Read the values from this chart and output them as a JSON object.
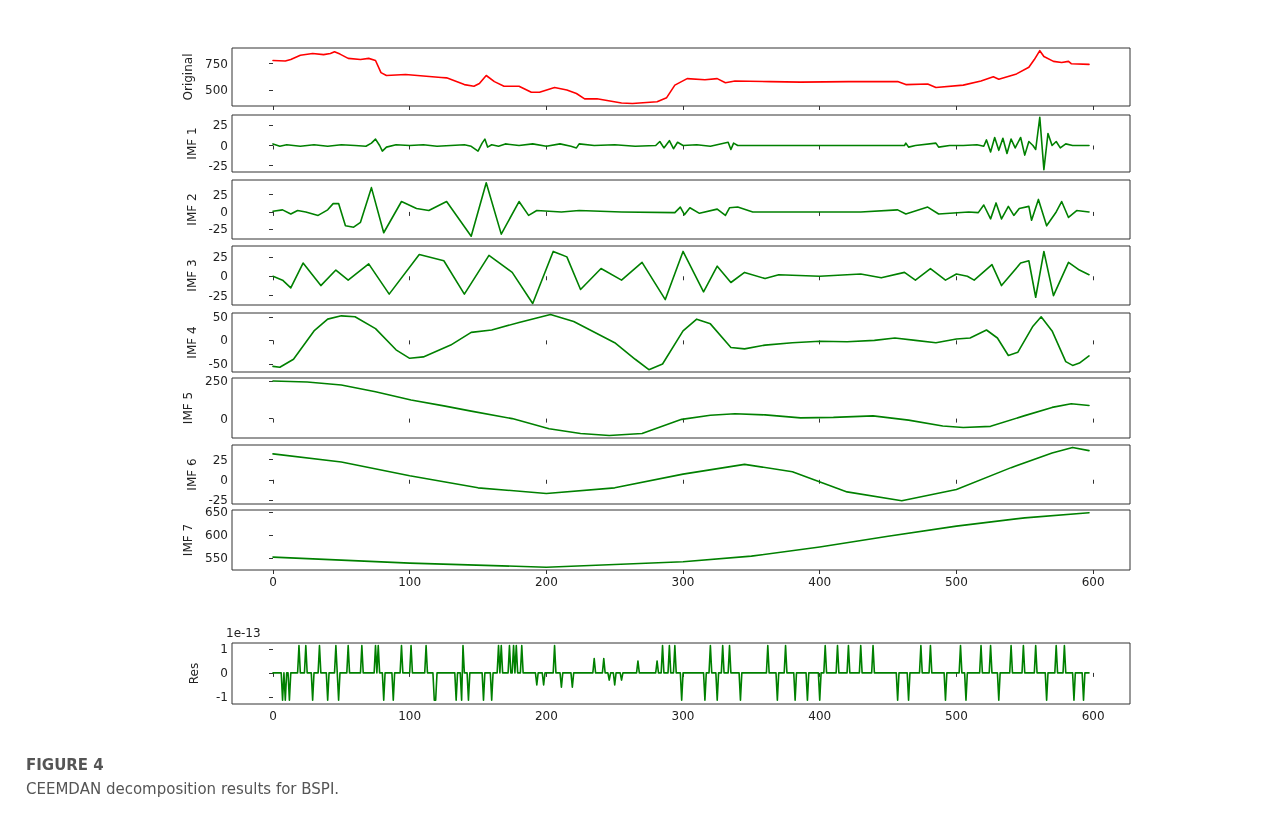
{
  "chart_data": [
    {
      "type": "line",
      "ylabel": "Original",
      "color": "#ff0000",
      "xlim": [
        -30,
        627
      ],
      "xticks": [
        0,
        100,
        200,
        300,
        400,
        500,
        600
      ],
      "ylim": [
        355,
        897
      ],
      "yticks": [
        500,
        750
      ],
      "tick_labels": "y",
      "x": [
        0,
        9,
        13,
        20,
        29,
        37,
        42,
        45,
        49,
        55,
        64,
        70,
        75,
        79,
        83,
        97,
        123,
        127,
        140,
        147,
        151,
        156,
        162,
        169,
        180,
        189,
        195,
        206,
        215,
        222,
        228,
        237,
        255,
        263,
        281,
        288,
        294,
        303,
        316,
        325,
        331,
        338,
        364,
        386,
        421,
        457,
        463,
        479,
        485,
        505,
        518,
        527,
        531,
        544,
        553,
        557,
        561,
        564,
        571,
        577,
        582,
        584,
        597
      ],
      "values": [
        780,
        775,
        790,
        830,
        845,
        835,
        845,
        862,
        840,
        800,
        790,
        800,
        780,
        667,
        640,
        650,
        622,
        618,
        555,
        540,
        565,
        640,
        583,
        540,
        540,
        483,
        483,
        528,
        505,
        472,
        422,
        422,
        383,
        378,
        394,
        433,
        550,
        611,
        600,
        611,
        572,
        589,
        583,
        578,
        583,
        583,
        555,
        561,
        528,
        550,
        589,
        628,
        605,
        655,
        717,
        789,
        872,
        817,
        772,
        761,
        772,
        750,
        744
      ]
    },
    {
      "type": "line",
      "ylabel": "IMF 1",
      "color": "#008000",
      "xlim": [
        -30,
        627
      ],
      "xticks": [
        0,
        100,
        200,
        300,
        400,
        500,
        600
      ],
      "ylim": [
        -33,
        38
      ],
      "yticks": [
        -25,
        0,
        25
      ],
      "tick_labels": "y",
      "x": [
        0,
        5,
        10,
        20,
        30,
        40,
        50,
        60,
        68,
        72,
        75,
        78,
        80,
        83,
        90,
        100,
        110,
        120,
        130,
        140,
        145,
        150,
        153,
        155,
        157,
        160,
        165,
        170,
        180,
        190,
        200,
        210,
        218,
        222,
        224,
        235,
        250,
        265,
        280,
        283,
        286,
        290,
        293,
        296,
        300,
        310,
        320,
        333,
        335,
        337,
        340,
        360,
        400,
        450,
        462,
        463,
        465,
        470,
        485,
        487,
        495,
        505,
        515,
        520,
        522,
        525,
        528,
        531,
        534,
        537,
        540,
        543,
        547,
        550,
        553,
        556,
        558,
        561,
        564,
        567,
        570,
        573,
        576,
        580,
        585,
        597
      ],
      "values": [
        2,
        -1,
        1,
        -1,
        1,
        -1,
        1,
        0,
        -1,
        3,
        8,
        0,
        -7,
        -2,
        1,
        0,
        1,
        -1,
        0,
        1,
        -1,
        -7,
        3,
        8,
        -2,
        1,
        -1,
        2,
        0,
        2,
        -1,
        2,
        -1,
        -3,
        2,
        0,
        1,
        -1,
        0,
        5,
        -3,
        6,
        -4,
        4,
        0,
        1,
        -1,
        4,
        -5,
        3,
        0,
        0,
        0,
        0,
        0,
        3,
        -2,
        0,
        3,
        -2,
        0,
        0,
        1,
        -1,
        7,
        -8,
        10,
        -6,
        9,
        -10,
        8,
        -3,
        10,
        -12,
        5,
        0,
        -5,
        35,
        -30,
        15,
        0,
        5,
        -3,
        2,
        0,
        0
      ]
    },
    {
      "type": "line",
      "ylabel": "IMF 2",
      "color": "#008000",
      "xlim": [
        -30,
        627
      ],
      "xticks": [
        0,
        100,
        200,
        300,
        400,
        500,
        600
      ],
      "ylim": [
        -39,
        46
      ],
      "yticks": [
        -25,
        0,
        25
      ],
      "tick_labels": "y",
      "x": [
        0,
        7,
        13,
        18,
        24,
        33,
        40,
        44,
        48,
        53,
        59,
        64,
        72,
        81,
        94,
        105,
        114,
        127,
        145,
        156,
        167,
        180,
        187,
        193,
        211,
        224,
        255,
        294,
        298,
        301,
        305,
        312,
        325,
        331,
        334,
        340,
        351,
        386,
        430,
        457,
        463,
        479,
        487,
        509,
        516,
        520,
        525,
        529,
        533,
        538,
        542,
        546,
        553,
        555,
        560,
        566,
        573,
        577,
        582,
        588,
        597
      ],
      "values": [
        1,
        3,
        -3,
        2,
        0,
        -5,
        3,
        12,
        12,
        -20,
        -22,
        -15,
        35,
        -30,
        15,
        5,
        2,
        15,
        -35,
        42,
        -32,
        15,
        -5,
        2,
        0,
        2,
        0,
        -1,
        7,
        -4,
        6,
        -2,
        4,
        -5,
        6,
        7,
        0,
        0,
        0,
        3,
        -3,
        7,
        -3,
        0,
        -1,
        10,
        -10,
        13,
        -10,
        8,
        -5,
        5,
        8,
        -12,
        18,
        -20,
        0,
        15,
        -8,
        2,
        0
      ]
    },
    {
      "type": "line",
      "ylabel": "IMF 3",
      "color": "#008000",
      "xlim": [
        -30,
        627
      ],
      "xticks": [
        0,
        100,
        200,
        300,
        400,
        500,
        600
      ],
      "ylim": [
        -37,
        39
      ],
      "yticks": [
        -25,
        0,
        25
      ],
      "tick_labels": "y",
      "x": [
        0,
        7,
        13,
        22,
        35,
        46,
        55,
        70,
        85,
        107,
        125,
        140,
        158,
        175,
        190,
        205,
        215,
        225,
        240,
        255,
        270,
        287,
        300,
        315,
        325,
        335,
        345,
        360,
        370,
        400,
        430,
        445,
        462,
        470,
        481,
        492,
        500,
        508,
        513,
        526,
        533,
        547,
        553,
        558,
        564,
        571,
        582,
        590,
        597
      ],
      "values": [
        0,
        -5,
        -15,
        17,
        -12,
        8,
        -5,
        16,
        -23,
        28,
        20,
        -23,
        27,
        5,
        -35,
        32,
        25,
        -17,
        10,
        -5,
        18,
        -30,
        32,
        -20,
        13,
        -8,
        5,
        -3,
        2,
        0,
        3,
        -2,
        5,
        -5,
        10,
        -5,
        3,
        0,
        -5,
        15,
        -12,
        17,
        20,
        -27,
        32,
        -25,
        18,
        8,
        2
      ]
    },
    {
      "type": "line",
      "ylabel": "IMF 4",
      "color": "#008000",
      "xlim": [
        -30,
        627
      ],
      "xticks": [
        0,
        100,
        200,
        300,
        400,
        500,
        600
      ],
      "ylim": [
        -67,
        58
      ],
      "yticks": [
        -50,
        0,
        50
      ],
      "tick_labels": "y",
      "x": [
        0,
        5,
        15,
        30,
        40,
        50,
        60,
        75,
        90,
        100,
        110,
        130,
        145,
        160,
        180,
        203,
        220,
        250,
        265,
        275,
        285,
        300,
        310,
        320,
        335,
        345,
        360,
        380,
        400,
        420,
        440,
        455,
        470,
        485,
        500,
        510,
        522,
        530,
        538,
        545,
        556,
        562,
        570,
        580,
        585,
        590,
        597
      ],
      "values": [
        -55,
        -57,
        -40,
        20,
        45,
        52,
        50,
        25,
        -20,
        -38,
        -35,
        -10,
        17,
        22,
        38,
        55,
        40,
        -5,
        -40,
        -62,
        -50,
        20,
        45,
        35,
        -15,
        -18,
        -10,
        -5,
        -2,
        -3,
        0,
        5,
        0,
        -5,
        3,
        5,
        22,
        5,
        -32,
        -25,
        30,
        50,
        20,
        -45,
        -53,
        -48,
        -33
      ]
    },
    {
      "type": "line",
      "ylabel": "IMF 5",
      "color": "#008000",
      "xlim": [
        -30,
        627
      ],
      "xticks": [
        0,
        100,
        200,
        300,
        400,
        500,
        600
      ],
      "ylim": [
        -130,
        272
      ],
      "yticks": [
        0,
        250
      ],
      "tick_labels": "y",
      "x": [
        0,
        25,
        50,
        75,
        101,
        125,
        145,
        175,
        202,
        225,
        246,
        270,
        299,
        320,
        338,
        360,
        386,
        410,
        439,
        465,
        490,
        505,
        525,
        550,
        570,
        584,
        597
      ],
      "values": [
        252,
        245,
        225,
        180,
        125,
        85,
        50,
        0,
        -68,
        -100,
        -113,
        -100,
        -5,
        22,
        32,
        25,
        5,
        8,
        18,
        -10,
        -50,
        -60,
        -52,
        20,
        75,
        100,
        88
      ]
    },
    {
      "type": "line",
      "ylabel": "IMF 6",
      "color": "#008000",
      "xlim": [
        -30,
        627
      ],
      "xticks": [
        0,
        100,
        200,
        300,
        400,
        500,
        600
      ],
      "ylim": [
        -30,
        43
      ],
      "yticks": [
        -25,
        0,
        25
      ],
      "tick_labels": "y",
      "x": [
        0,
        50,
        100,
        150,
        200,
        250,
        300,
        345,
        380,
        420,
        460,
        500,
        540,
        570,
        585,
        597
      ],
      "values": [
        32,
        22,
        5,
        -10,
        -17,
        -10,
        7,
        19,
        10,
        -15,
        -26,
        -12,
        15,
        33,
        40,
        36
      ]
    },
    {
      "type": "line",
      "ylabel": "IMF 7",
      "color": "#008000",
      "xlim": [
        -30,
        627
      ],
      "xticks": [
        0,
        100,
        200,
        300,
        400,
        500,
        600
      ],
      "ylim": [
        525,
        655
      ],
      "yticks": [
        550,
        600,
        650
      ],
      "x": [
        0,
        100,
        200,
        300,
        350,
        400,
        450,
        500,
        550,
        597
      ],
      "values": [
        553,
        540,
        531,
        543,
        555,
        575,
        598,
        620,
        638,
        649
      ]
    },
    {
      "type": "line",
      "ylabel": "Res",
      "color": "#008000",
      "xlim": [
        -30,
        627
      ],
      "xticks": [
        0,
        100,
        200,
        300,
        400,
        500,
        600
      ],
      "ylim": [
        -1.3,
        1.25
      ],
      "yticks": [
        -1,
        0,
        1
      ],
      "annotations": [
        "1e-13",
        "FIGURE 4",
        "CEEMDAN decomposition results for BSPI."
      ],
      "x": [
        0,
        6,
        7,
        8,
        9,
        10,
        11,
        12,
        13,
        18,
        19,
        20,
        23,
        24,
        25,
        28,
        29,
        30,
        33,
        34,
        35,
        39,
        40,
        41,
        45,
        46,
        47,
        48,
        49,
        54,
        55,
        56,
        64,
        65,
        66,
        74,
        75,
        76,
        77,
        78,
        80,
        81,
        82,
        87,
        88,
        89,
        93,
        94,
        95,
        100,
        101,
        102,
        111,
        112,
        113,
        117,
        118,
        119,
        120,
        133,
        134,
        135,
        137,
        138,
        139,
        140,
        142,
        143,
        144,
        153,
        154,
        155,
        159,
        160,
        161,
        164,
        165,
        166,
        167,
        168,
        172,
        173,
        174,
        175,
        176,
        177,
        178,
        179,
        181,
        182,
        183,
        192,
        193,
        194,
        197,
        198,
        199,
        205,
        206,
        207,
        210,
        211,
        212,
        218,
        219,
        220,
        234,
        235,
        236,
        241,
        242,
        243,
        245,
        246,
        247,
        249,
        250,
        251,
        254,
        255,
        256,
        266,
        267,
        268,
        280,
        281,
        282,
        284,
        285,
        286,
        289,
        290,
        291,
        293,
        294,
        295,
        298,
        299,
        300,
        315,
        316,
        317,
        319,
        320,
        321,
        324,
        325,
        326,
        328,
        329,
        330,
        333,
        334,
        335,
        341,
        342,
        343,
        361,
        362,
        363,
        368,
        369,
        370,
        374,
        375,
        376,
        381,
        382,
        383,
        390,
        391,
        392,
        399,
        400,
        401,
        403,
        404,
        405,
        412,
        413,
        414,
        420,
        421,
        422,
        429,
        430,
        431,
        438,
        439,
        440,
        456,
        457,
        458,
        464,
        465,
        466,
        473,
        474,
        475,
        480,
        481,
        482,
        491,
        492,
        493,
        502,
        503,
        504,
        506,
        507,
        508,
        517,
        518,
        519,
        524,
        525,
        526,
        530,
        531,
        532,
        539,
        540,
        541,
        548,
        549,
        550,
        557,
        558,
        559,
        565,
        566,
        567,
        572,
        573,
        574,
        578,
        579,
        580,
        585,
        586,
        587,
        592,
        593,
        594,
        597
      ],
      "values": [
        0,
        0,
        -1.14,
        0,
        -1.14,
        0,
        0,
        -1.14,
        0,
        0,
        1.14,
        0,
        0,
        1.14,
        0,
        0,
        -1.14,
        0,
        0,
        1.14,
        0,
        0,
        -1.14,
        0,
        0,
        1.14,
        0,
        -1.14,
        0,
        0,
        1.14,
        0,
        0,
        1.14,
        0,
        0,
        1.14,
        0,
        1.14,
        0,
        0,
        -1.14,
        0,
        0,
        -1.14,
        0,
        0,
        1.14,
        0,
        0,
        1.14,
        0,
        0,
        1.14,
        0,
        0,
        -1.14,
        -1.14,
        0,
        0,
        -1.14,
        0,
        0,
        -1.14,
        1.14,
        0,
        0,
        -1.14,
        0,
        0,
        -1.14,
        0,
        0,
        -1.14,
        0,
        0,
        1.14,
        0,
        1.14,
        0,
        0,
        1.14,
        0,
        0,
        1.14,
        0,
        1.14,
        0,
        0,
        1.14,
        0,
        0,
        -0.5,
        0,
        0,
        -0.5,
        0,
        0,
        1.14,
        0,
        0,
        -0.6,
        0,
        0,
        -0.6,
        0,
        0,
        0.6,
        0,
        0,
        0.6,
        0,
        0,
        -0.3,
        0,
        0,
        -0.5,
        0,
        0,
        -0.3,
        0,
        0,
        0.5,
        0,
        0,
        0.5,
        0,
        0,
        1.14,
        0,
        0,
        1.14,
        0,
        0,
        1.14,
        0,
        0,
        -1.14,
        0,
        0,
        -1.14,
        0,
        0,
        1.14,
        0,
        0,
        -1.14,
        0,
        0,
        1.14,
        0,
        0,
        1.14,
        0,
        0,
        -1.14,
        0,
        0,
        1.14,
        0,
        0,
        -1.14,
        0,
        0,
        1.14,
        0,
        0,
        -1.14,
        0,
        0,
        -1.14,
        0,
        0,
        -1.14,
        0,
        0,
        1.14,
        0,
        0,
        1.14,
        0,
        0,
        1.14,
        0,
        0,
        1.14,
        0,
        0,
        1.14,
        0,
        0,
        -1.14,
        0,
        0,
        -1.14,
        0,
        0,
        1.14,
        0,
        0,
        1.14,
        0,
        0,
        -1.14,
        0,
        0,
        1.14,
        0,
        0,
        -1.14,
        0,
        0,
        1.14,
        0,
        0,
        1.14,
        0,
        0,
        -1.14,
        0,
        0,
        1.14,
        0,
        0,
        1.14,
        0,
        0,
        1.14,
        0,
        0,
        -1.14,
        0,
        0,
        1.14,
        0,
        0,
        1.14,
        0,
        0,
        -1.14,
        0,
        0,
        -1.14,
        0,
        0
      ]
    }
  ]
}
